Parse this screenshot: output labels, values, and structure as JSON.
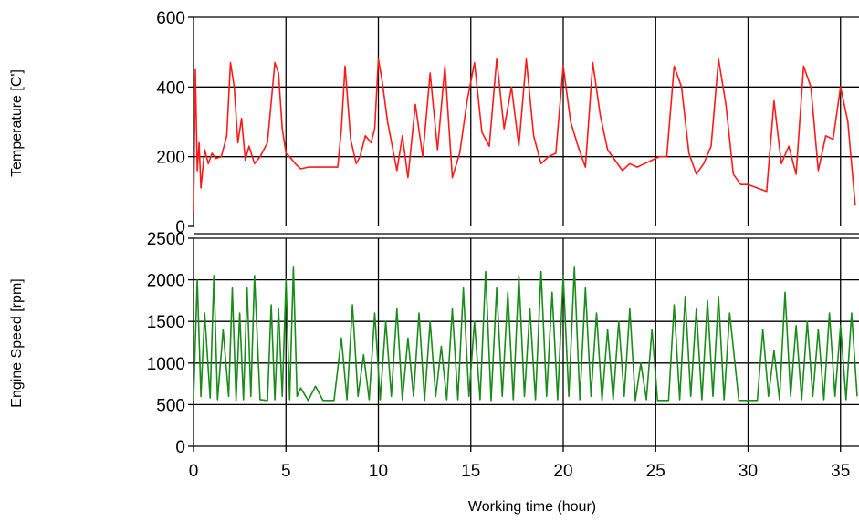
{
  "chart_data": [
    {
      "type": "line",
      "ylabel": "Temperature [C']",
      "ylim": [
        0,
        600
      ],
      "yticks": [
        0,
        200,
        400,
        600
      ],
      "xlim": [
        0,
        36
      ],
      "grid": true,
      "color": "#ff1a1a",
      "series": [
        {
          "x": [
            0,
            0.1,
            0.2,
            0.3,
            0.4,
            0.6,
            0.8,
            1.0,
            1.2,
            1.5,
            1.8,
            2.0,
            2.2,
            2.4,
            2.6,
            2.8,
            3.0,
            3.3,
            3.6,
            4.0,
            4.4,
            4.6,
            4.8,
            5.0,
            5.2,
            5.5,
            5.8,
            6.2,
            7.0,
            7.8,
            8.0,
            8.2,
            8.5,
            8.8,
            9.0,
            9.3,
            9.6,
            9.8,
            10.0,
            10.2,
            10.5,
            11.0,
            11.3,
            11.6,
            12.0,
            12.4,
            12.8,
            13.2,
            13.6,
            14.0,
            14.4,
            14.8,
            15.2,
            15.6,
            16.0,
            16.4,
            16.8,
            17.2,
            17.6,
            18.0,
            18.4,
            18.8,
            19.2,
            19.6,
            20.0,
            20.4,
            20.8,
            21.2,
            21.6,
            22.0,
            22.4,
            22.8,
            23.2,
            23.6,
            24.0,
            24.4,
            24.8,
            25.2,
            25.6,
            26.0,
            26.4,
            26.8,
            27.2,
            27.6,
            28.0,
            28.4,
            28.8,
            29.2,
            29.6,
            30.0,
            30.5,
            31.0,
            31.4,
            31.8,
            32.2,
            32.6,
            33.0,
            33.4,
            33.8,
            34.2,
            34.6,
            35.0,
            35.4,
            35.8
          ],
          "y": [
            40,
            450,
            160,
            240,
            110,
            220,
            180,
            210,
            195,
            200,
            260,
            470,
            400,
            240,
            310,
            190,
            230,
            180,
            200,
            240,
            470,
            440,
            280,
            210,
            200,
            180,
            165,
            170,
            170,
            170,
            280,
            460,
            250,
            180,
            200,
            260,
            240,
            280,
            480,
            420,
            300,
            160,
            260,
            140,
            350,
            200,
            440,
            220,
            460,
            140,
            210,
            360,
            470,
            270,
            230,
            480,
            280,
            400,
            230,
            480,
            260,
            180,
            200,
            210,
            460,
            300,
            230,
            170,
            470,
            320,
            220,
            190,
            160,
            180,
            170,
            180,
            190,
            200,
            200,
            460,
            400,
            210,
            150,
            180,
            230,
            480,
            350,
            150,
            120,
            120,
            110,
            100,
            360,
            180,
            230,
            150,
            460,
            400,
            160,
            260,
            250,
            400,
            300,
            60
          ]
        }
      ]
    },
    {
      "type": "line",
      "ylabel": "Engine Speed [rpm]",
      "xlabel": "Working time (hour)",
      "ylim": [
        0,
        2500
      ],
      "yticks": [
        0,
        500,
        1000,
        1500,
        2000,
        2500
      ],
      "xlim": [
        0,
        36
      ],
      "xticks": [
        0,
        5,
        10,
        15,
        20,
        25,
        30,
        35
      ],
      "grid": true,
      "color": "#1a8c1a",
      "series": [
        {
          "x": [
            0,
            0.2,
            0.4,
            0.6,
            0.9,
            1.1,
            1.3,
            1.6,
            1.9,
            2.1,
            2.3,
            2.5,
            2.7,
            2.9,
            3.1,
            3.3,
            3.6,
            4.0,
            4.2,
            4.4,
            4.6,
            4.8,
            5.0,
            5.2,
            5.4,
            5.6,
            5.8,
            6.2,
            6.6,
            7.0,
            7.6,
            8.0,
            8.3,
            8.6,
            8.9,
            9.2,
            9.5,
            9.8,
            10.1,
            10.4,
            10.7,
            11.0,
            11.3,
            11.6,
            11.9,
            12.2,
            12.5,
            12.8,
            13.1,
            13.4,
            13.7,
            14.0,
            14.3,
            14.6,
            14.9,
            15.2,
            15.5,
            15.8,
            16.1,
            16.4,
            16.7,
            17.0,
            17.3,
            17.6,
            17.9,
            18.2,
            18.5,
            18.8,
            19.1,
            19.4,
            19.7,
            20.0,
            20.3,
            20.6,
            20.9,
            21.2,
            21.5,
            21.8,
            22.1,
            22.4,
            22.7,
            23.0,
            23.3,
            23.6,
            23.9,
            24.2,
            24.5,
            24.8,
            25.1,
            25.4,
            25.7,
            26.0,
            26.3,
            26.6,
            26.9,
            27.2,
            27.5,
            27.8,
            28.1,
            28.4,
            28.7,
            29.0,
            29.5,
            30.0,
            30.5,
            30.8,
            31.1,
            31.4,
            31.7,
            32.0,
            32.3,
            32.6,
            32.9,
            33.2,
            33.5,
            33.8,
            34.1,
            34.4,
            34.7,
            35.0,
            35.3,
            35.6,
            35.9
          ],
          "y": [
            550,
            2000,
            600,
            1600,
            580,
            2050,
            560,
            1400,
            600,
            1900,
            550,
            1600,
            560,
            1900,
            600,
            2050,
            560,
            550,
            1700,
            560,
            1650,
            600,
            2000,
            560,
            2150,
            600,
            700,
            550,
            720,
            550,
            550,
            1300,
            560,
            1700,
            600,
            1100,
            560,
            1600,
            560,
            1500,
            600,
            1650,
            560,
            1300,
            600,
            1600,
            550,
            1500,
            600,
            1200,
            560,
            1650,
            560,
            1900,
            600,
            1500,
            560,
            2100,
            550,
            1900,
            600,
            1850,
            560,
            2050,
            600,
            1650,
            560,
            2100,
            600,
            1850,
            560,
            2050,
            600,
            2150,
            560,
            1900,
            600,
            1600,
            550,
            1400,
            560,
            1500,
            600,
            1650,
            550,
            1000,
            560,
            1400,
            550,
            550,
            550,
            1700,
            560,
            1800,
            600,
            1650,
            560,
            1750,
            600,
            1800,
            560,
            1600,
            550,
            550,
            550,
            1400,
            600,
            1150,
            560,
            1850,
            600,
            1450,
            560,
            1500,
            600,
            1400,
            560,
            1600,
            600,
            1450,
            560,
            1600,
            600
          ]
        }
      ]
    }
  ]
}
